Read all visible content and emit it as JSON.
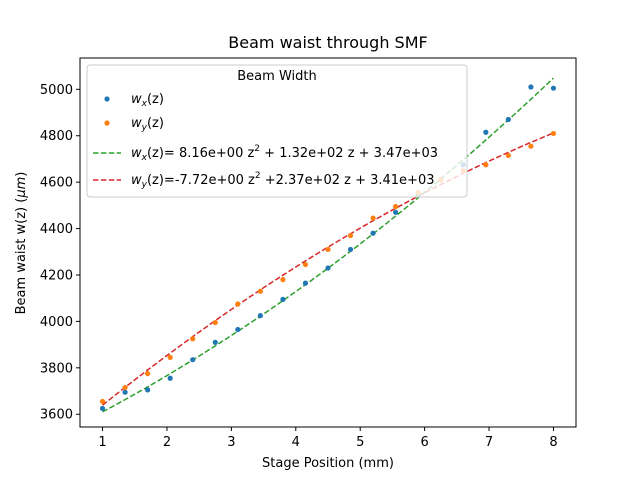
{
  "chart_data": {
    "type": "scatter",
    "title": "Beam waist through SMF",
    "xlabel": "Stage Position (mm)",
    "ylabel_text": "Beam waist w(z) (",
    "ylabel_unit": "μm",
    "ylabel_close": ")",
    "xlim": [
      0.65,
      8.35
    ],
    "ylim": [
      3545,
      5135
    ],
    "xticks": [
      1,
      2,
      3,
      4,
      5,
      6,
      7,
      8
    ],
    "yticks": [
      3600,
      3800,
      4000,
      4200,
      4400,
      4600,
      4800,
      5000
    ],
    "legend": {
      "title": "Beam Width",
      "placement": "top-left"
    },
    "legend_labels": {
      "wx": {
        "sym": "w",
        "sub": "x",
        "tail": "(z)"
      },
      "wy": {
        "sym": "w",
        "sub": "y",
        "tail": "(z)"
      },
      "fitx": {
        "pre": "(z)= 8.16e+00 z",
        "post": " + 1.32e+02 z + 3.47e+03"
      },
      "fity": {
        "pre": "(z)=-7.72e+00 z",
        "post": " +2.37e+02 z + 3.41e+03"
      },
      "sq": "2"
    },
    "series": [
      {
        "name": "wx(z)",
        "kind": "points",
        "color": "#1f77b4",
        "x": [
          1.0,
          1.35,
          1.7,
          2.05,
          2.4,
          2.75,
          3.1,
          3.45,
          3.8,
          4.15,
          4.5,
          4.85,
          5.2,
          5.55,
          5.9,
          6.25,
          6.6,
          6.95,
          7.3,
          7.65,
          8.0
        ],
        "y": [
          3625,
          3695,
          3705,
          3755,
          3835,
          3910,
          3965,
          4025,
          4095,
          4165,
          4230,
          4310,
          4380,
          4470,
          4545,
          4610,
          4675,
          4815,
          4870,
          5010,
          5005
        ]
      },
      {
        "name": "wy(z)",
        "kind": "points",
        "color": "#ff7f0e",
        "x": [
          1.0,
          1.35,
          1.7,
          2.05,
          2.4,
          2.75,
          3.1,
          3.45,
          3.8,
          4.15,
          4.5,
          4.85,
          5.2,
          5.55,
          5.9,
          6.25,
          6.6,
          6.95,
          7.3,
          7.65,
          8.0
        ],
        "y": [
          3655,
          3715,
          3775,
          3845,
          3925,
          3995,
          4075,
          4130,
          4180,
          4245,
          4310,
          4370,
          4445,
          4495,
          4555,
          4610,
          4650,
          4675,
          4715,
          4755,
          4810
        ]
      },
      {
        "name": "fit-x",
        "kind": "fit",
        "color": "#2ca02c",
        "coeffs": [
          8.16,
          132,
          3470
        ],
        "x_range": [
          1.0,
          8.0
        ]
      },
      {
        "name": "fit-y",
        "kind": "fit",
        "color": "#d62728",
        "coeffs": [
          -7.72,
          237,
          3410
        ],
        "x_range": [
          1.0,
          8.0
        ]
      }
    ]
  }
}
